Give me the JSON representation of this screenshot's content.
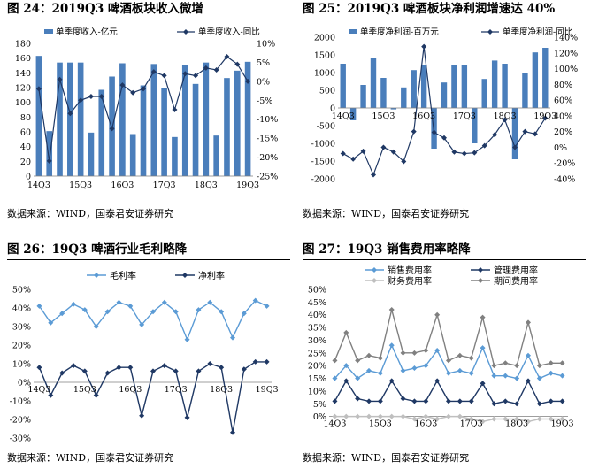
{
  "panels": [
    {
      "title": "图 24：2019Q3 啤酒板块收入微增",
      "source": "数据来源：WIND，国泰君安证券研究"
    },
    {
      "title": "图 25：2019Q3 啤酒板块净利润增速达 40%",
      "source": "数据来源：WIND，国泰君安证券研究"
    },
    {
      "title": "图 26：19Q3 啤酒行业毛利略降",
      "source": "数据来源：WIND，国泰君安证券研究"
    },
    {
      "title": "图 27：19Q3 销售费用率略降",
      "source": "数据来源：WIND，国泰君安证券研究"
    }
  ],
  "chart_data": [
    {
      "type": "bar",
      "categories": [
        "14Q3",
        "14Q4",
        "15Q1",
        "15Q2",
        "15Q3",
        "15Q4",
        "16Q1",
        "16Q2",
        "16Q3",
        "16Q4",
        "17Q1",
        "17Q2",
        "17Q3",
        "17Q4",
        "18Q1",
        "18Q2",
        "18Q3",
        "18Q4",
        "19Q1",
        "19Q2",
        "19Q3"
      ],
      "tick_labels": [
        "14Q3",
        "15Q3",
        "16Q3",
        "17Q3",
        "18Q3",
        "19Q3"
      ],
      "series": [
        {
          "name": "单季度收入-亿元",
          "kind": "bar",
          "axis": "left",
          "color": "#4a7ebb",
          "values": [
            163,
            61,
            154,
            154,
            154,
            59,
            117,
            135,
            153,
            57,
            123,
            152,
            120,
            53,
            150,
            125,
            154,
            55,
            133,
            143,
            155
          ]
        },
        {
          "name": "单季度收入-同比",
          "kind": "line",
          "axis": "right",
          "color": "#1f3864",
          "values": [
            -2,
            -21,
            0.5,
            -8.5,
            -5,
            -4,
            -4,
            -12.5,
            -1,
            -3,
            -2,
            2.5,
            1.5,
            -7.5,
            2,
            1.5,
            3.5,
            3,
            6.5,
            4.5,
            0
          ]
        }
      ],
      "ylim_left": [
        0,
        180
      ],
      "yticks_left": [
        0,
        20,
        40,
        60,
        80,
        100,
        120,
        140,
        160,
        180
      ],
      "ylim_right": [
        -25,
        10
      ],
      "yticks_right": [
        "-25%",
        "-20%",
        "-15%",
        "-10%",
        "-5%",
        "0%",
        "5%",
        "10%"
      ],
      "legend": "top"
    },
    {
      "type": "bar",
      "categories": [
        "14Q3",
        "14Q4",
        "15Q1",
        "15Q2",
        "15Q3",
        "15Q4",
        "16Q1",
        "16Q2",
        "16Q3",
        "16Q4",
        "17Q1",
        "17Q2",
        "17Q3",
        "17Q4",
        "18Q1",
        "18Q2",
        "18Q3",
        "18Q4",
        "19Q1",
        "19Q2",
        "19Q3"
      ],
      "tick_labels": [
        "14Q3",
        "15Q3",
        "16Q3",
        "17Q3",
        "18Q3",
        "19Q3"
      ],
      "series": [
        {
          "name": "单季度净利润-百万元",
          "kind": "bar",
          "axis": "left",
          "color": "#4a7ebb",
          "values": [
            1250,
            -350,
            650,
            1420,
            850,
            -40,
            580,
            1070,
            1210,
            -1150,
            720,
            1220,
            1200,
            -1000,
            820,
            1340,
            1250,
            -1450,
            990,
            1570,
            1700
          ]
        },
        {
          "name": "单季度净利润-同比",
          "kind": "line",
          "axis": "right",
          "color": "#1f3864",
          "values": [
            -8,
            -15,
            -5,
            -35,
            0,
            -6,
            -18,
            20,
            128,
            19,
            12,
            -6,
            -8,
            -7,
            2,
            16,
            35,
            0,
            20,
            17,
            37
          ]
        }
      ],
      "ylim_left": [
        -2000,
        2000
      ],
      "yticks_left": [
        -2000,
        -1500,
        -1000,
        -500,
        0,
        500,
        1000,
        1500,
        2000
      ],
      "ylim_right": [
        -40,
        140
      ],
      "yticks_right": [
        "-40%",
        "-20%",
        "0%",
        "20%",
        "40%",
        "60%",
        "80%",
        "100%",
        "120%",
        "140%"
      ],
      "legend": "top"
    },
    {
      "type": "line",
      "categories": [
        "14Q3",
        "14Q4",
        "15Q1",
        "15Q2",
        "15Q3",
        "15Q4",
        "16Q1",
        "16Q2",
        "16Q3",
        "16Q4",
        "17Q1",
        "17Q2",
        "17Q3",
        "17Q4",
        "18Q1",
        "18Q2",
        "18Q3",
        "18Q4",
        "19Q1",
        "19Q2",
        "19Q3"
      ],
      "tick_labels": [
        "14Q3",
        "15Q3",
        "16Q3",
        "17Q3",
        "18Q3",
        "19Q3"
      ],
      "series": [
        {
          "name": "毛利率",
          "color": "#5b9bd5",
          "values": [
            41,
            32,
            37,
            42,
            39,
            30,
            38,
            43,
            41,
            31,
            38,
            43,
            38,
            23,
            39,
            43,
            38,
            24,
            37,
            44,
            41
          ]
        },
        {
          "name": "净利率",
          "color": "#1f3864",
          "values": [
            8,
            -7,
            5,
            9,
            6,
            -7,
            5,
            8,
            8,
            -18,
            6,
            9,
            6,
            -19,
            6,
            10,
            8,
            -27,
            7,
            11,
            11
          ]
        }
      ],
      "ylim": [
        -30,
        50
      ],
      "yticks": [
        "-30%",
        "-20%",
        "-10%",
        "0%",
        "10%",
        "20%",
        "30%",
        "40%",
        "50%"
      ],
      "legend": "top"
    },
    {
      "type": "line",
      "categories": [
        "14Q3",
        "14Q4",
        "15Q1",
        "15Q2",
        "15Q3",
        "15Q4",
        "16Q1",
        "16Q2",
        "16Q3",
        "16Q4",
        "17Q1",
        "17Q2",
        "17Q3",
        "17Q4",
        "18Q1",
        "18Q2",
        "18Q3",
        "18Q4",
        "19Q1",
        "19Q2",
        "19Q3"
      ],
      "tick_labels": [
        "14Q3",
        "15Q3",
        "16Q3",
        "17Q3",
        "18Q3",
        "19Q3"
      ],
      "series": [
        {
          "name": "销售费用率",
          "color": "#5b9bd5",
          "values": [
            15,
            20,
            15,
            18,
            17,
            28,
            18,
            19,
            20,
            26,
            17,
            18,
            17,
            27,
            16,
            16,
            15,
            24,
            15,
            17,
            16
          ]
        },
        {
          "name": "管理费用率",
          "color": "#1f3864",
          "values": [
            6,
            14,
            7,
            6,
            6,
            14,
            7,
            6,
            6,
            14,
            6,
            6,
            6,
            13,
            5,
            6,
            5,
            14,
            5,
            6,
            6
          ]
        },
        {
          "name": "财务费用率",
          "color": "#bfbfbf",
          "values": [
            0,
            0,
            0,
            0,
            0,
            0,
            0,
            -1,
            0,
            -1,
            0,
            0,
            -1,
            -2,
            -1,
            -1,
            -1,
            -2,
            -1,
            -1,
            -1
          ]
        },
        {
          "name": "期间费用率",
          "color": "#808080",
          "values": [
            22,
            33,
            22,
            24,
            23,
            42,
            25,
            25,
            26,
            40,
            22,
            24,
            23,
            39,
            20,
            21,
            20,
            37,
            20,
            21,
            21
          ]
        }
      ],
      "ylim": [
        -5,
        50
      ],
      "yticks": [
        "0%",
        "5%",
        "10%",
        "15%",
        "20%",
        "25%",
        "30%",
        "35%",
        "40%",
        "45%",
        "50%"
      ],
      "legend": "top"
    }
  ]
}
